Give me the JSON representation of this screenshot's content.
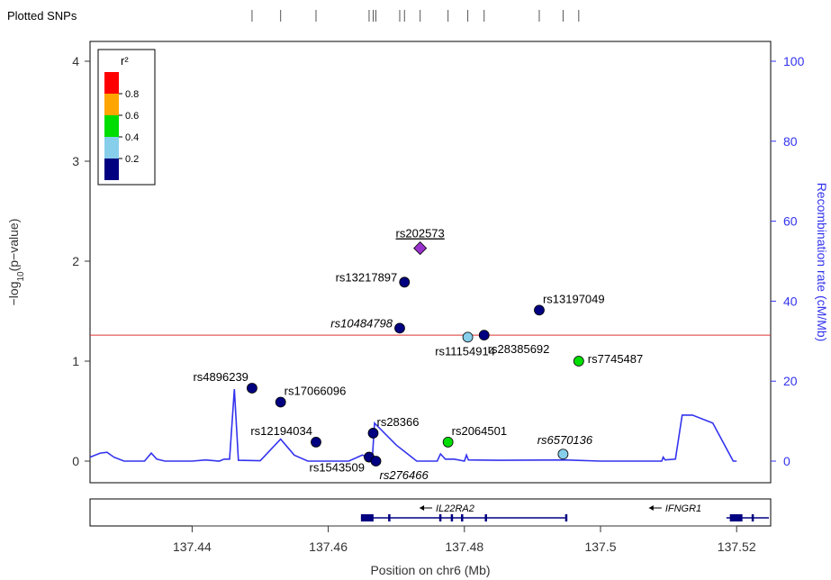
{
  "header": {
    "plotted_label": "Plotted SNPs"
  },
  "chart_data": {
    "type": "scatter",
    "xlabel": "Position on chr6 (Mb)",
    "ylabel": "−log10(p−value)",
    "ylabel_parts": [
      "−log",
      "10",
      "(p−value)"
    ],
    "y2label": "Recombination rate (cM/Mb)",
    "xlim": [
      137.425,
      137.525
    ],
    "ylim": [
      0,
      4.2
    ],
    "y2lim": [
      0,
      105
    ],
    "x_ticks": [
      137.44,
      137.46,
      137.48,
      137.5,
      137.52
    ],
    "x_tick_labels": [
      "137.44",
      "137.46",
      "137.48",
      "137.5",
      "137.52"
    ],
    "y_ticks": [
      0,
      1,
      2,
      3,
      4
    ],
    "y_tick_labels": [
      "0",
      "1",
      "2",
      "3",
      "4"
    ],
    "y2_ticks": [
      0,
      20,
      40,
      60,
      80,
      100
    ],
    "y2_tick_labels": [
      "0",
      "20",
      "40",
      "60",
      "80",
      "100"
    ],
    "significance_line": 1.26,
    "significance_color": "#dd3333",
    "recomb_color": "#3333ee",
    "legend": {
      "title": "r²",
      "position": "top-left",
      "bins": [
        {
          "color": "#ff0000"
        },
        {
          "color": "#ffa500"
        },
        {
          "color": "#00dd00"
        },
        {
          "color": "#87ceeb"
        },
        {
          "color": "#000080"
        }
      ],
      "labels": [
        "0.8",
        "0.6",
        "0.4",
        "0.2"
      ]
    },
    "points": [
      {
        "label": "rs202573",
        "x": 137.4735,
        "y": 2.13,
        "color": "#9932cc",
        "shape": "diamond",
        "underline": true,
        "italic": false,
        "label_pos": "above"
      },
      {
        "label": "rs13217897",
        "x": 137.4712,
        "y": 1.79,
        "color": "#000080",
        "shape": "circle",
        "underline": false,
        "italic": false,
        "label_pos": "left"
      },
      {
        "label": "rs13197049",
        "x": 137.491,
        "y": 1.51,
        "color": "#000080",
        "shape": "circle",
        "underline": false,
        "italic": false,
        "label_pos": "upright"
      },
      {
        "label": "rs10484798",
        "x": 137.4705,
        "y": 1.33,
        "color": "#000080",
        "shape": "circle",
        "underline": false,
        "italic": true,
        "label_pos": "left"
      },
      {
        "label": "rs11154914",
        "x": 137.4805,
        "y": 1.24,
        "color": "#87ceeb",
        "shape": "circle",
        "underline": false,
        "italic": false,
        "label_pos": "below"
      },
      {
        "label": "rs28385692",
        "x": 137.4829,
        "y": 1.26,
        "color": "#000080",
        "shape": "circle",
        "underline": false,
        "italic": false,
        "label_pos": "belowright"
      },
      {
        "label": "rs7745487",
        "x": 137.4968,
        "y": 1.0,
        "color": "#00dd00",
        "shape": "circle",
        "underline": false,
        "italic": false,
        "label_pos": "right"
      },
      {
        "label": "rs4896239",
        "x": 137.4488,
        "y": 0.73,
        "color": "#000080",
        "shape": "circle",
        "underline": false,
        "italic": false,
        "label_pos": "upleft"
      },
      {
        "label": "rs17066096",
        "x": 137.453,
        "y": 0.59,
        "color": "#000080",
        "shape": "circle",
        "underline": false,
        "italic": false,
        "label_pos": "upright"
      },
      {
        "label": "rs12194034",
        "x": 137.4582,
        "y": 0.19,
        "color": "#000080",
        "shape": "circle",
        "underline": false,
        "italic": false,
        "label_pos": "upleft"
      },
      {
        "label": "rs28366",
        "x": 137.4666,
        "y": 0.28,
        "color": "#000080",
        "shape": "circle",
        "underline": false,
        "italic": false,
        "label_pos": "upright"
      },
      {
        "label": "rs2064501",
        "x": 137.4776,
        "y": 0.19,
        "color": "#00dd00",
        "shape": "circle",
        "underline": false,
        "italic": false,
        "label_pos": "upright"
      },
      {
        "label": "rs6570136",
        "x": 137.4945,
        "y": 0.07,
        "color": "#87ceeb",
        "shape": "circle",
        "underline": false,
        "italic": true,
        "label_pos": "up"
      },
      {
        "label": "rs1543509",
        "x": 137.466,
        "y": 0.04,
        "color": "#000080",
        "shape": "circle",
        "underline": false,
        "italic": false,
        "label_pos": "belowleft"
      },
      {
        "label": "rs276466",
        "x": 137.467,
        "y": 0.0,
        "color": "#000080",
        "shape": "circle",
        "underline": false,
        "italic": true,
        "label_pos": "belowright"
      }
    ],
    "snp_rug": [
      137.4488,
      137.453,
      137.4582,
      137.466,
      137.4666,
      137.467,
      137.4705,
      137.4712,
      137.4735,
      137.4776,
      137.4805,
      137.4829,
      137.491,
      137.4945,
      137.4968
    ],
    "recombination": [
      [
        137.425,
        1.0
      ],
      [
        137.4265,
        2.0
      ],
      [
        137.4275,
        2.2
      ],
      [
        137.4285,
        1.0
      ],
      [
        137.43,
        0.0
      ],
      [
        137.433,
        0.0
      ],
      [
        137.434,
        2.0
      ],
      [
        137.4348,
        0.5
      ],
      [
        137.436,
        0.0
      ],
      [
        137.44,
        0.0
      ],
      [
        137.442,
        0.3
      ],
      [
        137.444,
        0.0
      ],
      [
        137.4447,
        0.5
      ],
      [
        137.4455,
        0.5
      ],
      [
        137.4462,
        18.0
      ],
      [
        137.4468,
        0.2
      ],
      [
        137.45,
        0.1
      ],
      [
        137.453,
        5.5
      ],
      [
        137.455,
        1.5
      ],
      [
        137.457,
        0.0
      ],
      [
        137.463,
        0.0
      ],
      [
        137.465,
        1.5
      ],
      [
        137.4658,
        1.0
      ],
      [
        137.4665,
        1.2
      ],
      [
        137.4668,
        9.5
      ],
      [
        137.47,
        4.0
      ],
      [
        137.473,
        0.0
      ],
      [
        137.476,
        0.0
      ],
      [
        137.4765,
        1.8
      ],
      [
        137.4772,
        0.5
      ],
      [
        137.4785,
        0.5
      ],
      [
        137.48,
        0.0
      ],
      [
        137.4803,
        1.5
      ],
      [
        137.4806,
        0.3
      ],
      [
        137.485,
        0.2
      ],
      [
        137.495,
        0.3
      ],
      [
        137.5,
        0.0
      ],
      [
        137.509,
        0.0
      ],
      [
        137.5092,
        1.0
      ],
      [
        137.5095,
        0.3
      ],
      [
        137.511,
        0.5
      ],
      [
        137.512,
        11.5
      ],
      [
        137.5135,
        11.5
      ],
      [
        137.5165,
        9.5
      ],
      [
        137.5195,
        0.0
      ],
      [
        137.52,
        0.0
      ]
    ],
    "genes": [
      {
        "name": "IL22RA2",
        "start": 137.4648,
        "end": 137.4948,
        "strand": "-",
        "exons": [
          137.4648,
          137.4662,
          137.4688,
          137.4763,
          137.478,
          137.4795,
          137.483,
          137.4948
        ]
      },
      {
        "name": "IFNGR1",
        "start": 137.5185,
        "end": 137.525,
        "strand": "-",
        "exons": [
          137.519,
          137.5222
        ]
      }
    ]
  }
}
